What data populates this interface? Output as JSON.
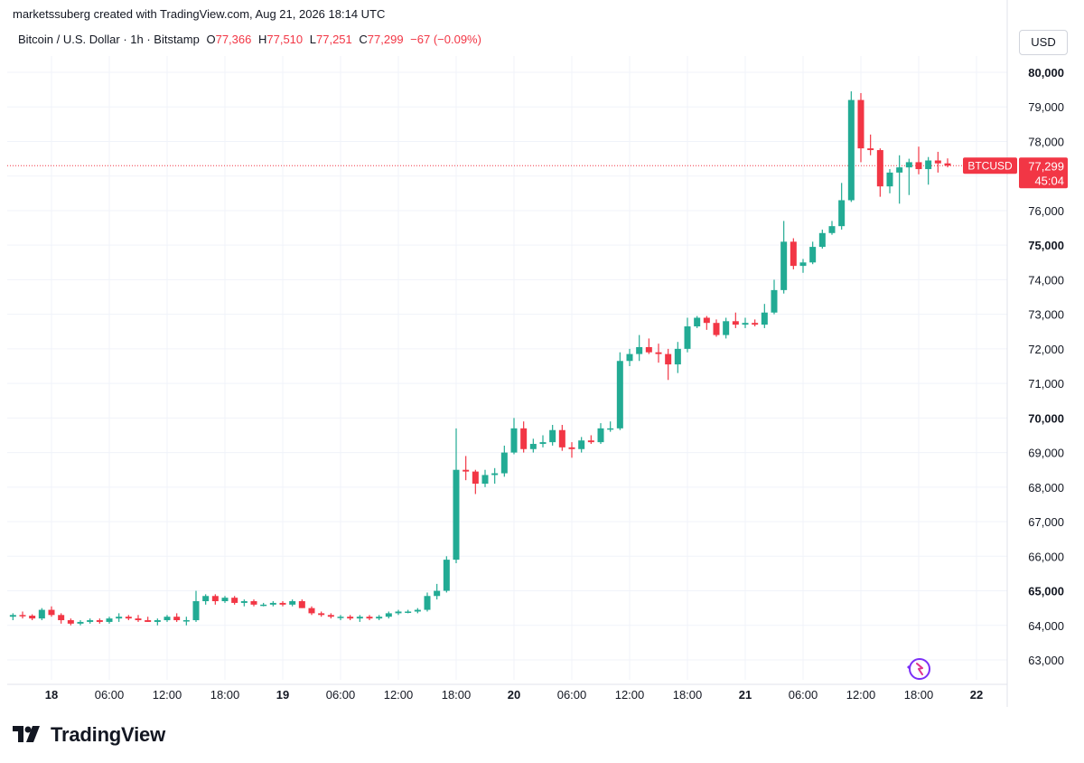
{
  "header": {
    "caption": "marketssuberg created with TradingView.com, Aug 21, 2026 18:14 UTC"
  },
  "legend": {
    "symbol": "Bitcoin / U.S. Dollar · 1h · Bitstamp",
    "open_label": "O",
    "open": "77,366",
    "high_label": "H",
    "high": "77,510",
    "low_label": "L",
    "low": "77,251",
    "close_label": "C",
    "close": "77,299",
    "change": "−67 (−0.09%)"
  },
  "currency_button": "USD",
  "price_tag": {
    "symbol": "BTCUSD",
    "price": "77,299",
    "countdown": "45:04"
  },
  "brand": {
    "name": "TradingView",
    "icon": "tradingview-logo-icon"
  },
  "colors": {
    "up": "#22ab94",
    "down": "#f23645",
    "grid": "#f0f3fa",
    "text": "#131722"
  },
  "chart_data": {
    "type": "candlestick",
    "ylim": [
      62500,
      80500
    ],
    "y_ticks": [
      {
        "label": "63,000",
        "value": 63000,
        "bold": false
      },
      {
        "label": "64,000",
        "value": 64000,
        "bold": false
      },
      {
        "label": "65,000",
        "value": 65000,
        "bold": true
      },
      {
        "label": "66,000",
        "value": 66000,
        "bold": false
      },
      {
        "label": "67,000",
        "value": 67000,
        "bold": false
      },
      {
        "label": "68,000",
        "value": 68000,
        "bold": false
      },
      {
        "label": "69,000",
        "value": 69000,
        "bold": false
      },
      {
        "label": "70,000",
        "value": 70000,
        "bold": true
      },
      {
        "label": "71,000",
        "value": 71000,
        "bold": false
      },
      {
        "label": "72,000",
        "value": 72000,
        "bold": false
      },
      {
        "label": "73,000",
        "value": 73000,
        "bold": false
      },
      {
        "label": "74,000",
        "value": 74000,
        "bold": false
      },
      {
        "label": "75,000",
        "value": 75000,
        "bold": true
      },
      {
        "label": "76,000",
        "value": 76000,
        "bold": false
      },
      {
        "label": "77,000",
        "value": 77000,
        "bold": false
      },
      {
        "label": "78,000",
        "value": 78000,
        "bold": false
      },
      {
        "label": "79,000",
        "value": 79000,
        "bold": false
      },
      {
        "label": "80,000",
        "value": 80000,
        "bold": true
      }
    ],
    "x_ticks": [
      {
        "label": "18",
        "hour": 0,
        "bold": true
      },
      {
        "label": "06:00",
        "hour": 6,
        "bold": false
      },
      {
        "label": "12:00",
        "hour": 12,
        "bold": false
      },
      {
        "label": "18:00",
        "hour": 18,
        "bold": false
      },
      {
        "label": "19",
        "hour": 24,
        "bold": true
      },
      {
        "label": "06:00",
        "hour": 30,
        "bold": false
      },
      {
        "label": "12:00",
        "hour": 36,
        "bold": false
      },
      {
        "label": "18:00",
        "hour": 42,
        "bold": false
      },
      {
        "label": "20",
        "hour": 48,
        "bold": true
      },
      {
        "label": "06:00",
        "hour": 54,
        "bold": false
      },
      {
        "label": "12:00",
        "hour": 60,
        "bold": false
      },
      {
        "label": "18:00",
        "hour": 66,
        "bold": false
      },
      {
        "label": "21",
        "hour": 72,
        "bold": true
      },
      {
        "label": "06:00",
        "hour": 78,
        "bold": false
      },
      {
        "label": "12:00",
        "hour": 84,
        "bold": false
      },
      {
        "label": "18:00",
        "hour": 90,
        "bold": false
      },
      {
        "label": "22",
        "hour": 96,
        "bold": true
      }
    ],
    "last_price": 77299,
    "candles": [
      {
        "t": -4,
        "o": 64250,
        "h": 64350,
        "l": 64150,
        "c": 64300
      },
      {
        "t": -3,
        "o": 64300,
        "h": 64400,
        "l": 64200,
        "c": 64280
      },
      {
        "t": -2,
        "o": 64280,
        "h": 64320,
        "l": 64150,
        "c": 64200
      },
      {
        "t": -1,
        "o": 64200,
        "h": 64500,
        "l": 64150,
        "c": 64450
      },
      {
        "t": 0,
        "o": 64450,
        "h": 64550,
        "l": 64250,
        "c": 64300
      },
      {
        "t": 1,
        "o": 64300,
        "h": 64350,
        "l": 64050,
        "c": 64150
      },
      {
        "t": 2,
        "o": 64150,
        "h": 64200,
        "l": 64000,
        "c": 64050
      },
      {
        "t": 3,
        "o": 64050,
        "h": 64150,
        "l": 64000,
        "c": 64100
      },
      {
        "t": 4,
        "o": 64100,
        "h": 64200,
        "l": 64050,
        "c": 64150
      },
      {
        "t": 5,
        "o": 64150,
        "h": 64200,
        "l": 64050,
        "c": 64100
      },
      {
        "t": 6,
        "o": 64100,
        "h": 64250,
        "l": 64050,
        "c": 64200
      },
      {
        "t": 7,
        "o": 64200,
        "h": 64350,
        "l": 64100,
        "c": 64250
      },
      {
        "t": 8,
        "o": 64250,
        "h": 64300,
        "l": 64150,
        "c": 64200
      },
      {
        "t": 9,
        "o": 64200,
        "h": 64300,
        "l": 64100,
        "c": 64150
      },
      {
        "t": 10,
        "o": 64150,
        "h": 64250,
        "l": 64100,
        "c": 64100
      },
      {
        "t": 11,
        "o": 64100,
        "h": 64200,
        "l": 64000,
        "c": 64150
      },
      {
        "t": 12,
        "o": 64150,
        "h": 64300,
        "l": 64100,
        "c": 64250
      },
      {
        "t": 13,
        "o": 64250,
        "h": 64350,
        "l": 64100,
        "c": 64150
      },
      {
        "t": 14,
        "o": 64150,
        "h": 64250,
        "l": 64000,
        "c": 64150
      },
      {
        "t": 15,
        "o": 64150,
        "h": 65000,
        "l": 64100,
        "c": 64700
      },
      {
        "t": 16,
        "o": 64700,
        "h": 64900,
        "l": 64600,
        "c": 64850
      },
      {
        "t": 17,
        "o": 64850,
        "h": 64900,
        "l": 64600,
        "c": 64700
      },
      {
        "t": 18,
        "o": 64700,
        "h": 64850,
        "l": 64650,
        "c": 64800
      },
      {
        "t": 19,
        "o": 64800,
        "h": 64850,
        "l": 64600,
        "c": 64650
      },
      {
        "t": 20,
        "o": 64650,
        "h": 64750,
        "l": 64550,
        "c": 64700
      },
      {
        "t": 21,
        "o": 64700,
        "h": 64750,
        "l": 64550,
        "c": 64600
      },
      {
        "t": 22,
        "o": 64600,
        "h": 64650,
        "l": 64550,
        "c": 64600
      },
      {
        "t": 23,
        "o": 64600,
        "h": 64700,
        "l": 64550,
        "c": 64650
      },
      {
        "t": 24,
        "o": 64650,
        "h": 64700,
        "l": 64550,
        "c": 64600
      },
      {
        "t": 25,
        "o": 64600,
        "h": 64750,
        "l": 64550,
        "c": 64700
      },
      {
        "t": 26,
        "o": 64700,
        "h": 64750,
        "l": 64500,
        "c": 64500
      },
      {
        "t": 27,
        "o": 64500,
        "h": 64550,
        "l": 64300,
        "c": 64350
      },
      {
        "t": 28,
        "o": 64350,
        "h": 64400,
        "l": 64250,
        "c": 64300
      },
      {
        "t": 29,
        "o": 64300,
        "h": 64350,
        "l": 64200,
        "c": 64250
      },
      {
        "t": 30,
        "o": 64250,
        "h": 64300,
        "l": 64150,
        "c": 64250
      },
      {
        "t": 31,
        "o": 64250,
        "h": 64300,
        "l": 64150,
        "c": 64200
      },
      {
        "t": 32,
        "o": 64200,
        "h": 64300,
        "l": 64100,
        "c": 64250
      },
      {
        "t": 33,
        "o": 64250,
        "h": 64300,
        "l": 64150,
        "c": 64200
      },
      {
        "t": 34,
        "o": 64200,
        "h": 64300,
        "l": 64150,
        "c": 64250
      },
      {
        "t": 35,
        "o": 64250,
        "h": 64400,
        "l": 64200,
        "c": 64350
      },
      {
        "t": 36,
        "o": 64350,
        "h": 64450,
        "l": 64300,
        "c": 64400
      },
      {
        "t": 37,
        "o": 64400,
        "h": 64450,
        "l": 64350,
        "c": 64400
      },
      {
        "t": 38,
        "o": 64400,
        "h": 64500,
        "l": 64350,
        "c": 64450
      },
      {
        "t": 39,
        "o": 64450,
        "h": 64950,
        "l": 64400,
        "c": 64850
      },
      {
        "t": 40,
        "o": 64850,
        "h": 65200,
        "l": 64750,
        "c": 65000
      },
      {
        "t": 41,
        "o": 65000,
        "h": 66000,
        "l": 64950,
        "c": 65900
      },
      {
        "t": 42,
        "o": 65900,
        "h": 69700,
        "l": 65800,
        "c": 68500
      },
      {
        "t": 43,
        "o": 68500,
        "h": 68900,
        "l": 68200,
        "c": 68450
      },
      {
        "t": 44,
        "o": 68450,
        "h": 68500,
        "l": 67800,
        "c": 68100
      },
      {
        "t": 45,
        "o": 68100,
        "h": 68500,
        "l": 68000,
        "c": 68350
      },
      {
        "t": 46,
        "o": 68350,
        "h": 68550,
        "l": 68100,
        "c": 68400
      },
      {
        "t": 47,
        "o": 68400,
        "h": 69200,
        "l": 68300,
        "c": 69000
      },
      {
        "t": 48,
        "o": 69000,
        "h": 70000,
        "l": 68950,
        "c": 69700
      },
      {
        "t": 49,
        "o": 69700,
        "h": 69900,
        "l": 69000,
        "c": 69100
      },
      {
        "t": 50,
        "o": 69100,
        "h": 69400,
        "l": 69000,
        "c": 69250
      },
      {
        "t": 51,
        "o": 69250,
        "h": 69500,
        "l": 69150,
        "c": 69300
      },
      {
        "t": 52,
        "o": 69300,
        "h": 69800,
        "l": 69200,
        "c": 69650
      },
      {
        "t": 53,
        "o": 69650,
        "h": 69800,
        "l": 69050,
        "c": 69150
      },
      {
        "t": 54,
        "o": 69150,
        "h": 69300,
        "l": 68850,
        "c": 69100
      },
      {
        "t": 55,
        "o": 69100,
        "h": 69450,
        "l": 69000,
        "c": 69350
      },
      {
        "t": 56,
        "o": 69350,
        "h": 69500,
        "l": 69250,
        "c": 69300
      },
      {
        "t": 57,
        "o": 69300,
        "h": 69850,
        "l": 69250,
        "c": 69700
      },
      {
        "t": 58,
        "o": 69700,
        "h": 69900,
        "l": 69600,
        "c": 69700
      },
      {
        "t": 59,
        "o": 69700,
        "h": 71900,
        "l": 69650,
        "c": 71650
      },
      {
        "t": 60,
        "o": 71650,
        "h": 72000,
        "l": 71500,
        "c": 71850
      },
      {
        "t": 61,
        "o": 71850,
        "h": 72400,
        "l": 71650,
        "c": 72050
      },
      {
        "t": 62,
        "o": 72050,
        "h": 72300,
        "l": 71850,
        "c": 71900
      },
      {
        "t": 63,
        "o": 71900,
        "h": 72150,
        "l": 71600,
        "c": 71850
      },
      {
        "t": 64,
        "o": 71850,
        "h": 72000,
        "l": 71100,
        "c": 71550
      },
      {
        "t": 65,
        "o": 71550,
        "h": 72200,
        "l": 71300,
        "c": 72000
      },
      {
        "t": 66,
        "o": 72000,
        "h": 72900,
        "l": 71900,
        "c": 72650
      },
      {
        "t": 67,
        "o": 72650,
        "h": 72950,
        "l": 72600,
        "c": 72900
      },
      {
        "t": 68,
        "o": 72900,
        "h": 72950,
        "l": 72550,
        "c": 72750
      },
      {
        "t": 69,
        "o": 72750,
        "h": 72850,
        "l": 72350,
        "c": 72400
      },
      {
        "t": 70,
        "o": 72400,
        "h": 72900,
        "l": 72300,
        "c": 72800
      },
      {
        "t": 71,
        "o": 72800,
        "h": 73050,
        "l": 72600,
        "c": 72700
      },
      {
        "t": 72,
        "o": 72700,
        "h": 72900,
        "l": 72600,
        "c": 72750
      },
      {
        "t": 73,
        "o": 72750,
        "h": 72850,
        "l": 72650,
        "c": 72700
      },
      {
        "t": 74,
        "o": 72700,
        "h": 73300,
        "l": 72600,
        "c": 73050
      },
      {
        "t": 75,
        "o": 73050,
        "h": 74000,
        "l": 73000,
        "c": 73700
      },
      {
        "t": 76,
        "o": 73700,
        "h": 75700,
        "l": 73600,
        "c": 75100
      },
      {
        "t": 77,
        "o": 75100,
        "h": 75200,
        "l": 74300,
        "c": 74400
      },
      {
        "t": 78,
        "o": 74400,
        "h": 74600,
        "l": 74200,
        "c": 74500
      },
      {
        "t": 79,
        "o": 74500,
        "h": 75100,
        "l": 74450,
        "c": 74950
      },
      {
        "t": 80,
        "o": 74950,
        "h": 75450,
        "l": 74900,
        "c": 75350
      },
      {
        "t": 81,
        "o": 75350,
        "h": 75700,
        "l": 75300,
        "c": 75550
      },
      {
        "t": 82,
        "o": 75550,
        "h": 76800,
        "l": 75450,
        "c": 76300
      },
      {
        "t": 83,
        "o": 76300,
        "h": 79450,
        "l": 76250,
        "c": 79200
      },
      {
        "t": 84,
        "o": 79200,
        "h": 79400,
        "l": 77400,
        "c": 77800
      },
      {
        "t": 85,
        "o": 77800,
        "h": 78200,
        "l": 77600,
        "c": 77750
      },
      {
        "t": 86,
        "o": 77750,
        "h": 77800,
        "l": 76400,
        "c": 76700
      },
      {
        "t": 87,
        "o": 76700,
        "h": 77200,
        "l": 76500,
        "c": 77100
      },
      {
        "t": 88,
        "o": 77100,
        "h": 77600,
        "l": 76200,
        "c": 77250
      },
      {
        "t": 89,
        "o": 77250,
        "h": 77500,
        "l": 76450,
        "c": 77400
      },
      {
        "t": 90,
        "o": 77400,
        "h": 77850,
        "l": 77050,
        "c": 77200
      },
      {
        "t": 91,
        "o": 77200,
        "h": 77550,
        "l": 76750,
        "c": 77450
      },
      {
        "t": 92,
        "o": 77450,
        "h": 77700,
        "l": 77100,
        "c": 77366
      },
      {
        "t": 93,
        "o": 77366,
        "h": 77510,
        "l": 77251,
        "c": 77299
      }
    ]
  }
}
